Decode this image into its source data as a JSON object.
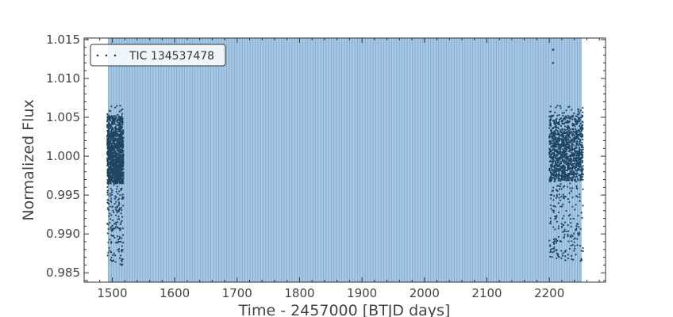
{
  "chart_data": {
    "type": "scatter",
    "xlabel": "Time - 2457000 [BTJD days]",
    "ylabel": "Normalized Flux",
    "xlim": [
      1455,
      2290
    ],
    "ylim": [
      0.9838,
      1.0152
    ],
    "x_ticks": [
      1500,
      1600,
      1700,
      1800,
      1900,
      2000,
      2100,
      2200
    ],
    "y_ticks": [
      0.985,
      0.99,
      0.995,
      1.0,
      1.005,
      1.01,
      1.015
    ],
    "x_tick_labels": [
      "1500",
      "1600",
      "1700",
      "1800",
      "1900",
      "2000",
      "2100",
      "2200"
    ],
    "y_tick_labels": [
      "0.985",
      "0.990",
      "0.995",
      "1.000",
      "1.005",
      "1.010",
      "1.015"
    ],
    "legend": {
      "entries": [
        "TIC 134537478"
      ],
      "location": "top-left"
    },
    "grid": false,
    "shaded_region": {
      "x_start": 1493,
      "x_end": 2252,
      "color": "#a8c8e4",
      "line_color": "#6e9fcb"
    },
    "series": [
      {
        "name": "TIC 134537478",
        "color": "#1f4560",
        "segments": [
          {
            "x_start": 1492,
            "x_end": 1518,
            "core_low": 0.9965,
            "core_high": 1.0032,
            "min": 0.9858,
            "max": 1.0065
          },
          {
            "x_start": 2200,
            "x_end": 2254,
            "core_low": 0.9968,
            "core_high": 1.0032,
            "min": 0.9865,
            "max": 1.0066
          }
        ],
        "outliers": [
          {
            "x": 2206,
            "y": 1.0137
          },
          {
            "x": 2206,
            "y": 1.012
          }
        ]
      }
    ]
  }
}
